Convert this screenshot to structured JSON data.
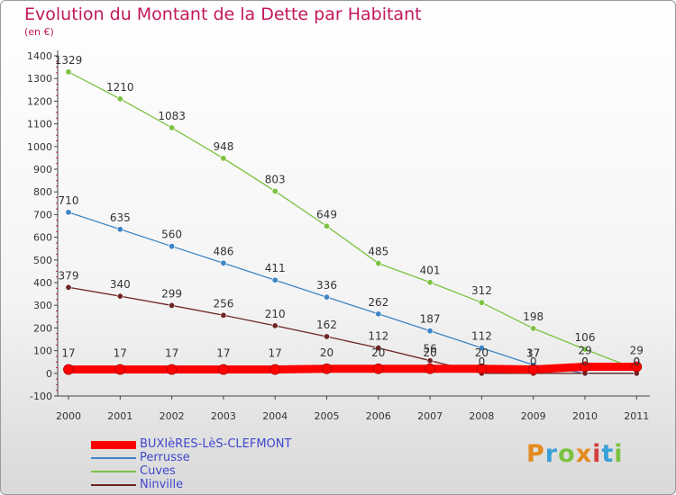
{
  "header": {
    "title": "Evolution du Montant de la Dette par Habitant",
    "unit": "(en €)"
  },
  "logo": {
    "text": "Proxiti",
    "colors": [
      "#e58a1f",
      "#3aa0d8",
      "#7cc242",
      "#e58a1f",
      "#d43f3a",
      "#3aa0d8",
      "#7cc242"
    ]
  },
  "chart_data": {
    "type": "line",
    "title": "Evolution du Montant de la Dette par Habitant",
    "ylabel": "(en €)",
    "xlabel": "",
    "x": [
      "2000",
      "2001",
      "2002",
      "2003",
      "2004",
      "2005",
      "2006",
      "2007",
      "2008",
      "2009",
      "2010",
      "2011"
    ],
    "ylim": [
      -100,
      1400
    ],
    "yticks": [
      "-100",
      "0",
      "100",
      "200",
      "300",
      "400",
      "500",
      "600",
      "700",
      "800",
      "900",
      "1000",
      "1100",
      "1200",
      "1300",
      "1400"
    ],
    "grid": false,
    "legend": "bottom-left",
    "series": [
      {
        "name": "BUXIèRES-LèS-CLEFMONT",
        "color": "#ff0000",
        "values": [
          17,
          17,
          17,
          17,
          17,
          20,
          20,
          20,
          20,
          17,
          29,
          29
        ],
        "labels": [
          "17",
          "17",
          "17",
          "17",
          "17",
          "20",
          "20",
          "20",
          "20",
          "17",
          "29",
          "29"
        ]
      },
      {
        "name": "Perrusse",
        "color": "#3d85c6",
        "values": [
          710,
          635,
          560,
          486,
          411,
          336,
          262,
          187,
          112,
          37,
          0,
          0
        ],
        "labels": [
          "710",
          "635",
          "560",
          "486",
          "411",
          "336",
          "262",
          "187",
          "112",
          "37",
          "0",
          "0"
        ]
      },
      {
        "name": "Cuves",
        "color": "#7cc242",
        "values": [
          1329,
          1210,
          1083,
          948,
          803,
          649,
          485,
          401,
          312,
          198,
          106,
          18
        ],
        "labels": [
          "1329",
          "1210",
          "1083",
          "948",
          "803",
          "649",
          "485",
          "401",
          "312",
          "198",
          "106",
          ""
        ]
      },
      {
        "name": "Ninville",
        "color": "#6e2525",
        "values": [
          379,
          340,
          299,
          256,
          210,
          162,
          112,
          56,
          0,
          0,
          0,
          0
        ],
        "labels": [
          "379",
          "340",
          "299",
          "256",
          "210",
          "162",
          "112",
          "56",
          "0",
          "0",
          "0",
          "0"
        ]
      }
    ]
  }
}
